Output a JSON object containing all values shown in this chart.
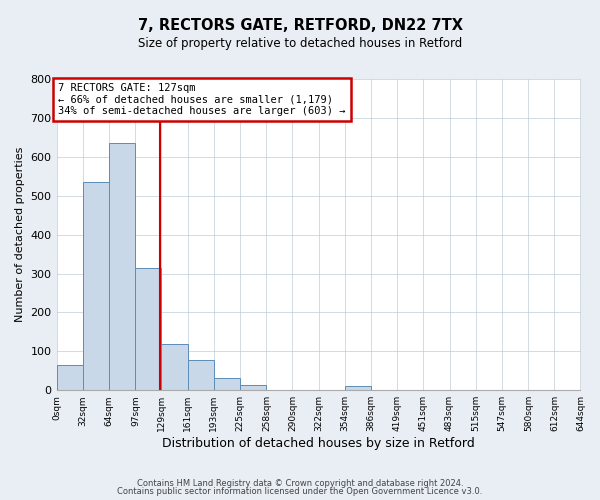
{
  "title": "7, RECTORS GATE, RETFORD, DN22 7TX",
  "subtitle": "Size of property relative to detached houses in Retford",
  "xlabel": "Distribution of detached houses by size in Retford",
  "ylabel": "Number of detached properties",
  "bin_edges": [
    0,
    32,
    64,
    97,
    129,
    161,
    193,
    225,
    258,
    290,
    322,
    354,
    386,
    419,
    451,
    483,
    515,
    547,
    580,
    612,
    644
  ],
  "bin_labels": [
    "0sqm",
    "32sqm",
    "64sqm",
    "97sqm",
    "129sqm",
    "161sqm",
    "193sqm",
    "225sqm",
    "258sqm",
    "290sqm",
    "322sqm",
    "354sqm",
    "386sqm",
    "419sqm",
    "451sqm",
    "483sqm",
    "515sqm",
    "547sqm",
    "580sqm",
    "612sqm",
    "644sqm"
  ],
  "bar_heights": [
    65,
    535,
    635,
    313,
    120,
    77,
    32,
    13,
    0,
    0,
    0,
    10,
    0,
    0,
    0,
    0,
    0,
    0,
    0,
    0
  ],
  "bar_color": "#c8d8e8",
  "bar_edge_color": "#5b8db8",
  "property_line_x": 127,
  "property_line_color": "#cc0000",
  "ylim": [
    0,
    800
  ],
  "yticks": [
    0,
    100,
    200,
    300,
    400,
    500,
    600,
    700,
    800
  ],
  "annotation_line1": "7 RECTORS GATE: 127sqm",
  "annotation_line2": "← 66% of detached houses are smaller (1,179)",
  "annotation_line3": "34% of semi-detached houses are larger (603) →",
  "annotation_box_color": "#cc0000",
  "footer1": "Contains HM Land Registry data © Crown copyright and database right 2024.",
  "footer2": "Contains public sector information licensed under the Open Government Licence v3.0.",
  "bg_color": "#e8eef4",
  "plot_bg_color": "#ffffff",
  "grid_color": "#c0ccd8"
}
